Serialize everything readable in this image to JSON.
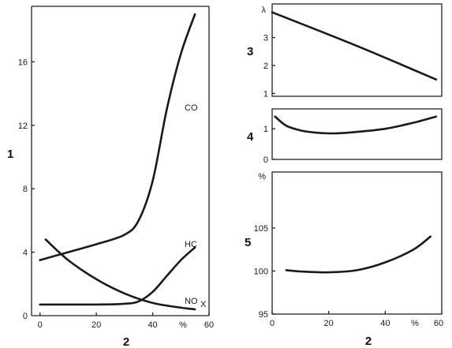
{
  "chart_data": [
    {
      "type": "line",
      "id": "left",
      "panel_label": "1",
      "x_label": "2",
      "x_unit": "%",
      "xlim": [
        -3,
        60
      ],
      "ylim": [
        0,
        19.5
      ],
      "x_ticks": [
        0,
        20,
        40,
        60
      ],
      "y_ticks": [
        4,
        8,
        12,
        16
      ],
      "y_tick_labels": [
        "4",
        "8",
        "12",
        "16"
      ],
      "bottom_label": "0",
      "series": [
        {
          "name": "CO",
          "label_sub": "",
          "x": [
            0,
            10,
            20,
            30,
            35,
            40,
            45,
            50,
            55
          ],
          "y": [
            3.5,
            4.0,
            4.5,
            5.1,
            6.0,
            8.5,
            13.0,
            16.5,
            19.0
          ]
        },
        {
          "name": "HC",
          "label_sub": "",
          "x": [
            0,
            10,
            20,
            30,
            35,
            40,
            45,
            50,
            55
          ],
          "y": [
            0.7,
            0.7,
            0.7,
            0.75,
            0.9,
            1.5,
            2.5,
            3.5,
            4.3
          ]
        },
        {
          "name": "NO",
          "label_sub": "X",
          "x": [
            2,
            10,
            20,
            30,
            40,
            50,
            55
          ],
          "y": [
            4.8,
            3.5,
            2.3,
            1.4,
            0.8,
            0.5,
            0.4
          ]
        }
      ]
    },
    {
      "type": "line",
      "id": "right-3",
      "panel_label": "3",
      "y_unit": "λ",
      "xlim": [
        0,
        60
      ],
      "ylim": [
        0.9,
        4.2
      ],
      "y_ticks": [
        1,
        2,
        3
      ],
      "y_tick_labels": [
        "1",
        "2",
        "3"
      ],
      "series": [
        {
          "name": "",
          "x": [
            0,
            30,
            58
          ],
          "y": [
            3.9,
            2.7,
            1.5
          ]
        }
      ]
    },
    {
      "type": "line",
      "id": "right-4",
      "panel_label": "4",
      "xlim": [
        0,
        60
      ],
      "ylim": [
        0,
        1.65
      ],
      "y_ticks": [
        0,
        1
      ],
      "y_tick_labels": [
        "0",
        "1"
      ],
      "series": [
        {
          "name": "",
          "x": [
            1,
            5,
            10,
            15,
            20,
            25,
            30,
            40,
            50,
            58
          ],
          "y": [
            1.4,
            1.1,
            0.95,
            0.88,
            0.85,
            0.86,
            0.9,
            1.0,
            1.2,
            1.4
          ]
        }
      ]
    },
    {
      "type": "line",
      "id": "right-5",
      "panel_label": "5",
      "y_unit": "%",
      "x_label": "2",
      "x_unit": "%",
      "xlim": [
        0,
        60
      ],
      "ylim": [
        95,
        111.5
      ],
      "x_ticks": [
        0,
        20,
        40,
        60
      ],
      "x_tick_labels": [
        "0",
        "20",
        "40",
        "60"
      ],
      "y_ticks": [
        95,
        100,
        105
      ],
      "y_tick_labels": [
        "95",
        "100",
        "105"
      ],
      "series": [
        {
          "name": "",
          "x": [
            5,
            10,
            20,
            30,
            40,
            50,
            56
          ],
          "y": [
            100.1,
            99.95,
            99.85,
            100.1,
            101.0,
            102.5,
            104.0
          ]
        }
      ]
    }
  ]
}
